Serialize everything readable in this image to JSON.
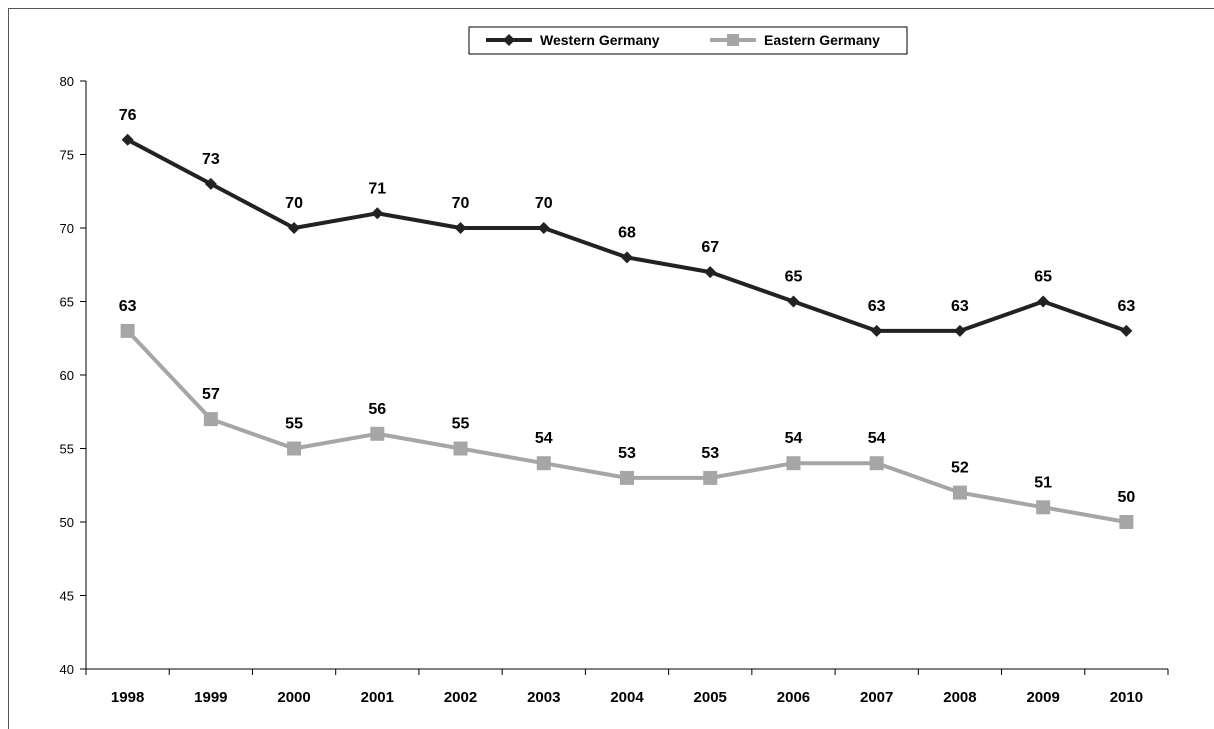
{
  "chart_data": {
    "type": "line",
    "categories": [
      "1998",
      "1999",
      "2000",
      "2001",
      "2002",
      "2003",
      "2004",
      "2005",
      "2006",
      "2007",
      "2008",
      "2009",
      "2010"
    ],
    "ylim": [
      40,
      80
    ],
    "yticks": [
      "40",
      "45",
      "50",
      "55",
      "60",
      "65",
      "70",
      "75",
      "80"
    ],
    "grid": false,
    "legend_position": "top-center",
    "series": [
      {
        "name": "Western Germany",
        "marker": "diamond",
        "color": "#222222",
        "values": [
          76,
          73,
          70,
          71,
          70,
          70,
          68,
          67,
          65,
          63,
          63,
          65,
          63
        ]
      },
      {
        "name": "Eastern Germany",
        "marker": "square",
        "color": "#a6a6a6",
        "values": [
          63,
          57,
          55,
          56,
          55,
          54,
          53,
          53,
          54,
          54,
          52,
          51,
          50
        ]
      }
    ]
  }
}
